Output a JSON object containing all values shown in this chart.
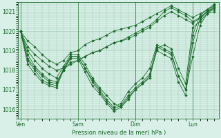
{
  "background_color": "#d8f0e8",
  "grid_color": "#a0c8b0",
  "line_color": "#1a6b2a",
  "marker_color": "#1a6b2a",
  "xlabel_text": "Pression niveau de la mer( hPa )",
  "xtick_labels": [
    "Ven",
    "Sam",
    "Dim",
    "Lun"
  ],
  "xtick_positions": [
    0,
    48,
    96,
    144
  ],
  "ylim": [
    1015.5,
    1021.5
  ],
  "yticks": [
    1016,
    1017,
    1018,
    1019,
    1020,
    1021
  ],
  "xlim": [
    -2,
    166
  ],
  "lines": [
    [
      0,
      1020.0,
      6,
      1019.2,
      12,
      1018.8,
      18,
      1018.5,
      24,
      1018.2,
      30,
      1018.0,
      36,
      1018.1,
      42,
      1018.3,
      48,
      1018.5,
      54,
      1018.7,
      60,
      1018.9,
      66,
      1019.0,
      72,
      1019.2,
      78,
      1019.4,
      84,
      1019.5,
      90,
      1019.7,
      96,
      1019.9,
      102,
      1020.1,
      108,
      1020.3,
      114,
      1020.6,
      120,
      1021.0,
      126,
      1021.2,
      132,
      1021.0,
      138,
      1020.8,
      144,
      1020.5,
      150,
      1020.7,
      156,
      1021.0,
      162,
      1021.2
    ],
    [
      0,
      1020.0,
      6,
      1018.8,
      12,
      1018.2,
      18,
      1017.8,
      24,
      1017.5,
      30,
      1017.4,
      36,
      1018.0,
      42,
      1018.4,
      48,
      1018.5,
      54,
      1018.7,
      60,
      1018.9,
      66,
      1019.0,
      72,
      1019.2,
      78,
      1019.4,
      84,
      1019.5,
      90,
      1019.6,
      96,
      1019.8,
      102,
      1020.0,
      108,
      1020.2,
      114,
      1020.5,
      120,
      1020.8,
      126,
      1021.0,
      132,
      1020.8,
      138,
      1020.6,
      144,
      1020.4,
      150,
      1020.7,
      156,
      1021.0,
      162,
      1021.1
    ],
    [
      0,
      1020.0,
      6,
      1019.0,
      12,
      1018.5,
      18,
      1018.1,
      24,
      1017.8,
      30,
      1017.6,
      36,
      1018.2,
      42,
      1018.8,
      48,
      1018.8,
      54,
      1018.3,
      60,
      1017.6,
      66,
      1017.1,
      72,
      1016.7,
      78,
      1016.3,
      84,
      1016.1,
      90,
      1016.5,
      96,
      1017.0,
      102,
      1017.3,
      108,
      1017.6,
      114,
      1019.1,
      120,
      1019.3,
      126,
      1019.1,
      132,
      1018.1,
      138,
      1017.3,
      144,
      1020.2,
      150,
      1020.5,
      156,
      1020.9,
      162,
      1021.0
    ],
    [
      0,
      1020.0,
      6,
      1018.5,
      12,
      1018.0,
      18,
      1017.5,
      24,
      1017.3,
      30,
      1017.2,
      36,
      1018.1,
      42,
      1018.7,
      48,
      1018.7,
      54,
      1018.1,
      60,
      1017.4,
      66,
      1016.9,
      72,
      1016.4,
      78,
      1016.0,
      84,
      1016.2,
      90,
      1016.7,
      96,
      1017.1,
      102,
      1017.4,
      108,
      1017.8,
      114,
      1019.2,
      120,
      1019.0,
      126,
      1018.8,
      132,
      1017.7,
      138,
      1017.0,
      144,
      1018.7,
      150,
      1020.3,
      156,
      1020.9,
      162,
      1021.2
    ],
    [
      0,
      1020.0,
      6,
      1018.3,
      12,
      1017.8,
      18,
      1017.4,
      24,
      1017.2,
      30,
      1017.1,
      36,
      1018.0,
      42,
      1018.6,
      48,
      1018.6,
      54,
      1017.9,
      60,
      1017.2,
      66,
      1016.8,
      72,
      1016.3,
      78,
      1015.9,
      84,
      1016.1,
      90,
      1016.6,
      96,
      1017.0,
      102,
      1017.3,
      108,
      1017.7,
      114,
      1019.0,
      120,
      1018.8,
      126,
      1018.6,
      132,
      1017.4,
      138,
      1016.7,
      144,
      1019.4,
      150,
      1020.6,
      156,
      1021.0,
      162,
      1021.3
    ],
    [
      0,
      1020.0,
      6,
      1018.6,
      12,
      1018.1,
      18,
      1017.7,
      24,
      1017.4,
      30,
      1017.3,
      36,
      1018.0,
      42,
      1018.7,
      48,
      1018.7,
      54,
      1018.1,
      60,
      1017.5,
      66,
      1017.0,
      72,
      1016.5,
      78,
      1016.1,
      84,
      1016.3,
      90,
      1016.9,
      96,
      1017.3,
      102,
      1017.6,
      108,
      1018.1,
      114,
      1019.3,
      120,
      1019.1,
      126,
      1018.9,
      132,
      1017.7,
      138,
      1017.0,
      144,
      1019.8,
      150,
      1020.8,
      156,
      1021.1,
      162,
      1021.4
    ],
    [
      0,
      1020.0,
      6,
      1019.5,
      12,
      1019.2,
      18,
      1018.8,
      24,
      1018.5,
      30,
      1018.3,
      36,
      1018.5,
      42,
      1018.9,
      48,
      1019.0,
      54,
      1019.3,
      60,
      1019.5,
      66,
      1019.6,
      72,
      1019.8,
      78,
      1020.0,
      84,
      1020.1,
      90,
      1020.2,
      96,
      1020.3,
      102,
      1020.5,
      108,
      1020.7,
      114,
      1020.9,
      120,
      1021.1,
      126,
      1021.3,
      132,
      1021.1,
      138,
      1020.9,
      144,
      1020.7,
      150,
      1020.9,
      156,
      1021.1,
      162,
      1021.3
    ]
  ]
}
